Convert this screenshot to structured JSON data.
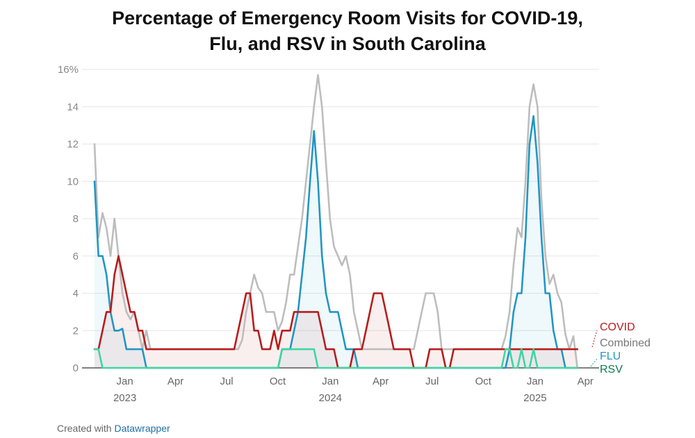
{
  "colors": {
    "covid": "#b71c1c",
    "combined": "#bdbdbd",
    "flu": "#2196c3",
    "rsv": "#3fd6a0",
    "rsv_label": "#0c7a4e",
    "combined_label": "#777777",
    "grid": "#e6e6e6",
    "axis_text": "#888888"
  },
  "footer": {
    "prefix": "Created with",
    "brand": "Datawrapper"
  },
  "chart_data": {
    "type": "line",
    "title": [
      "Percentage of Emergency Room Visits for COVID-19,",
      "Flu, and RSV in South Carolina"
    ],
    "xlabel": "",
    "ylabel": "",
    "x_unit": "weeks since 2022-11-19",
    "xlim": [
      0,
      124
    ],
    "ylim": [
      0,
      16
    ],
    "y_ticks": [
      {
        "value": 0,
        "label": "0"
      },
      {
        "value": 2,
        "label": "2"
      },
      {
        "value": 4,
        "label": "4"
      },
      {
        "value": 6,
        "label": "6"
      },
      {
        "value": 8,
        "label": "8"
      },
      {
        "value": 10,
        "label": "10"
      },
      {
        "value": 12,
        "label": "12"
      },
      {
        "value": 14,
        "label": "14"
      },
      {
        "value": 16,
        "label": "16%"
      }
    ],
    "x_ticks": [
      {
        "value": 7.6,
        "label": "Jan",
        "year": "2023"
      },
      {
        "value": 20.3,
        "label": "Apr",
        "year": ""
      },
      {
        "value": 33.1,
        "label": "Jul",
        "year": ""
      },
      {
        "value": 45.9,
        "label": "Oct",
        "year": ""
      },
      {
        "value": 59.1,
        "label": "Jan",
        "year": "2024"
      },
      {
        "value": 71.7,
        "label": "Apr",
        "year": ""
      },
      {
        "value": 84.6,
        "label": "Jul",
        "year": ""
      },
      {
        "value": 97.4,
        "label": "Oct",
        "year": ""
      },
      {
        "value": 110.4,
        "label": "Jan",
        "year": "2025"
      },
      {
        "value": 123.0,
        "label": "Apr",
        "year": ""
      }
    ],
    "grid": true,
    "legend": "right",
    "series": [
      {
        "name": "Combined",
        "label": "Combined",
        "color_key": "combined",
        "fill": false,
        "points": [
          [
            0,
            12
          ],
          [
            1,
            7
          ],
          [
            2,
            8.3
          ],
          [
            3,
            7.5
          ],
          [
            4,
            6
          ],
          [
            5,
            8
          ],
          [
            6,
            6
          ],
          [
            7,
            4
          ],
          [
            8,
            3
          ],
          [
            9,
            2.6
          ],
          [
            10,
            3
          ],
          [
            11,
            2
          ],
          [
            12,
            1
          ],
          [
            13,
            2
          ],
          [
            14,
            1
          ],
          [
            20,
            1
          ],
          [
            36,
            1
          ],
          [
            37,
            1.5
          ],
          [
            38,
            3
          ],
          [
            39,
            4
          ],
          [
            40,
            5
          ],
          [
            41,
            4.3
          ],
          [
            42,
            4
          ],
          [
            43,
            3
          ],
          [
            44,
            3
          ],
          [
            45,
            3
          ],
          [
            46,
            2
          ],
          [
            47,
            2.5
          ],
          [
            48,
            3.5
          ],
          [
            49,
            5
          ],
          [
            50,
            5
          ],
          [
            51,
            6.5
          ],
          [
            52,
            8
          ],
          [
            53,
            10
          ],
          [
            54,
            12
          ],
          [
            55,
            14
          ],
          [
            56,
            15.7
          ],
          [
            57,
            14
          ],
          [
            58,
            11
          ],
          [
            59,
            8
          ],
          [
            60,
            6.5
          ],
          [
            61,
            6
          ],
          [
            62,
            5.5
          ],
          [
            63,
            6
          ],
          [
            64,
            5
          ],
          [
            65,
            3
          ],
          [
            66,
            2
          ],
          [
            67,
            1
          ],
          [
            73,
            1
          ],
          [
            80,
            1
          ],
          [
            81,
            2
          ],
          [
            82,
            3
          ],
          [
            83,
            4
          ],
          [
            84,
            4
          ],
          [
            85,
            4
          ],
          [
            86,
            3
          ],
          [
            87,
            1
          ],
          [
            91,
            1
          ],
          [
            102,
            1
          ],
          [
            103,
            1.7
          ],
          [
            104,
            3
          ],
          [
            105,
            5.5
          ],
          [
            106,
            7.5
          ],
          [
            107,
            7
          ],
          [
            108,
            10
          ],
          [
            109,
            14
          ],
          [
            110,
            15.2
          ],
          [
            111,
            14
          ],
          [
            112,
            9
          ],
          [
            113,
            6
          ],
          [
            114,
            4.5
          ],
          [
            115,
            5
          ],
          [
            116,
            4
          ],
          [
            117,
            3.5
          ],
          [
            118,
            1.8
          ],
          [
            119,
            1
          ],
          [
            120,
            1.7
          ],
          [
            121,
            0
          ]
        ]
      },
      {
        "name": "FLU",
        "label": "FLU",
        "color_key": "flu",
        "fill": true,
        "points": [
          [
            0,
            10
          ],
          [
            1,
            6
          ],
          [
            2,
            6
          ],
          [
            3,
            5
          ],
          [
            4,
            3
          ],
          [
            5,
            2
          ],
          [
            6,
            2
          ],
          [
            7,
            2.1
          ],
          [
            8,
            1
          ],
          [
            9,
            1
          ],
          [
            10,
            1
          ],
          [
            11,
            1
          ],
          [
            12,
            1
          ],
          [
            13,
            0
          ],
          [
            46,
            0
          ],
          [
            47,
            1
          ],
          [
            48,
            1
          ],
          [
            49,
            1
          ],
          [
            50,
            2
          ],
          [
            51,
            3
          ],
          [
            52,
            5
          ],
          [
            53,
            7
          ],
          [
            54,
            10
          ],
          [
            55,
            12.7
          ],
          [
            56,
            10
          ],
          [
            57,
            6
          ],
          [
            58,
            4
          ],
          [
            59,
            3
          ],
          [
            60,
            3
          ],
          [
            61,
            3
          ],
          [
            62,
            2
          ],
          [
            63,
            1
          ],
          [
            64,
            1
          ],
          [
            65,
            1
          ],
          [
            66,
            0
          ],
          [
            102,
            0
          ],
          [
            103,
            0
          ],
          [
            104,
            1
          ],
          [
            105,
            3
          ],
          [
            106,
            4
          ],
          [
            107,
            4
          ],
          [
            108,
            7
          ],
          [
            109,
            12
          ],
          [
            110,
            13.5
          ],
          [
            111,
            11
          ],
          [
            112,
            7
          ],
          [
            113,
            4
          ],
          [
            114,
            4
          ],
          [
            115,
            2
          ],
          [
            116,
            1
          ],
          [
            117,
            1
          ],
          [
            118,
            0
          ],
          [
            121,
            0
          ]
        ]
      },
      {
        "name": "COVID",
        "label": "COVID",
        "color_key": "covid",
        "fill": true,
        "points": [
          [
            0,
            1
          ],
          [
            1,
            1
          ],
          [
            2,
            2
          ],
          [
            3,
            3
          ],
          [
            4,
            3
          ],
          [
            5,
            5
          ],
          [
            6,
            6
          ],
          [
            7,
            5
          ],
          [
            8,
            4
          ],
          [
            9,
            3
          ],
          [
            10,
            3
          ],
          [
            11,
            2
          ],
          [
            12,
            2
          ],
          [
            13,
            1
          ],
          [
            19,
            1
          ],
          [
            33,
            1
          ],
          [
            35,
            1
          ],
          [
            36,
            2
          ],
          [
            37,
            3
          ],
          [
            38,
            4
          ],
          [
            39,
            4
          ],
          [
            40,
            2
          ],
          [
            41,
            2
          ],
          [
            42,
            1
          ],
          [
            43,
            1
          ],
          [
            44,
            1
          ],
          [
            45,
            2
          ],
          [
            46,
            1
          ],
          [
            47,
            2
          ],
          [
            48,
            2
          ],
          [
            49,
            2
          ],
          [
            50,
            3
          ],
          [
            51,
            3
          ],
          [
            52,
            3
          ],
          [
            53,
            3
          ],
          [
            54,
            3
          ],
          [
            55,
            3
          ],
          [
            56,
            3
          ],
          [
            57,
            2
          ],
          [
            58,
            1
          ],
          [
            59,
            1
          ],
          [
            60,
            1
          ],
          [
            61,
            0
          ],
          [
            62,
            0
          ],
          [
            64,
            0
          ],
          [
            65,
            1
          ],
          [
            66,
            1
          ],
          [
            67,
            1
          ],
          [
            68,
            2
          ],
          [
            69,
            3
          ],
          [
            70,
            4
          ],
          [
            71,
            4
          ],
          [
            72,
            4
          ],
          [
            73,
            3
          ],
          [
            74,
            2
          ],
          [
            75,
            1
          ],
          [
            79,
            1
          ],
          [
            80,
            0
          ],
          [
            83,
            0
          ],
          [
            84,
            1
          ],
          [
            85,
            1
          ],
          [
            86,
            1
          ],
          [
            87,
            1
          ],
          [
            88,
            0
          ],
          [
            89,
            0
          ],
          [
            90,
            1
          ],
          [
            91,
            1
          ],
          [
            92,
            1
          ],
          [
            93,
            1
          ],
          [
            94,
            1
          ],
          [
            111,
            1
          ],
          [
            112,
            1
          ],
          [
            113,
            1
          ],
          [
            114,
            1
          ],
          [
            116,
            1
          ],
          [
            121,
            1
          ]
        ]
      },
      {
        "name": "RSV",
        "label": "RSV",
        "color_key": "rsv",
        "fill": false,
        "points": [
          [
            0,
            1
          ],
          [
            1,
            1
          ],
          [
            2,
            0
          ],
          [
            46,
            0
          ],
          [
            47,
            1
          ],
          [
            53,
            1
          ],
          [
            55,
            1
          ],
          [
            56,
            0
          ],
          [
            101,
            0
          ],
          [
            102,
            0
          ],
          [
            103,
            1
          ],
          [
            104,
            1
          ],
          [
            105,
            0
          ],
          [
            106,
            0
          ],
          [
            107,
            1
          ],
          [
            108,
            0
          ],
          [
            109,
            0
          ],
          [
            110,
            1
          ],
          [
            111,
            0
          ],
          [
            121,
            0
          ]
        ]
      }
    ],
    "draw_order": [
      "Combined",
      "FLU",
      "COVID",
      "RSV"
    ]
  }
}
